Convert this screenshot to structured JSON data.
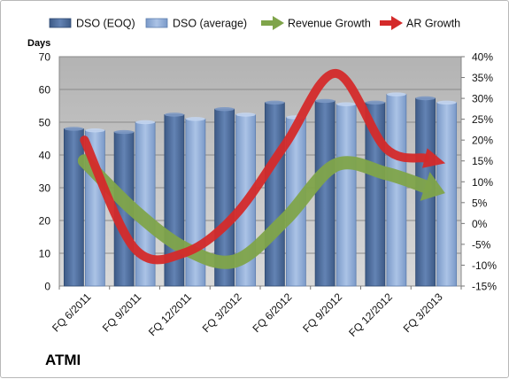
{
  "company": "ATMI",
  "chart_data": {
    "type": "bar",
    "y_title": "Days",
    "categories": [
      "FQ 6/2011",
      "FQ 9/2011",
      "FQ 12/2011",
      "FQ 3/2012",
      "FQ 6/2012",
      "FQ 9/2012",
      "FQ 12/2012",
      "FQ 3/2013"
    ],
    "series": [
      {
        "name": "DSO (EOQ)",
        "axis": "left",
        "kind": "bar",
        "color": "#4f6d9a",
        "values": [
          48,
          47,
          52.3,
          54,
          56,
          56.5,
          56,
          57.3
        ]
      },
      {
        "name": "DSO (average)",
        "axis": "left",
        "kind": "bar",
        "color": "#8eaad2",
        "values": [
          47.5,
          50,
          51,
          52.3,
          51.5,
          55.5,
          58.5,
          56
        ]
      },
      {
        "name": "Revenue Growth",
        "axis": "right",
        "kind": "arrow-curve",
        "color": "#7fa44a",
        "values": [
          15,
          3,
          -6,
          -9,
          1,
          14,
          12,
          8
        ]
      },
      {
        "name": "AR Growth",
        "axis": "right",
        "kind": "arrow-curve",
        "color": "#d42a2a",
        "values": [
          20,
          -6,
          -7,
          2,
          19,
          36,
          18,
          15
        ]
      }
    ],
    "y_left": {
      "min": 0,
      "max": 70,
      "step": 10,
      "ticks": [
        "0",
        "10",
        "20",
        "30",
        "40",
        "50",
        "60",
        "70"
      ]
    },
    "y_right": {
      "min": -15,
      "max": 40,
      "step": 5,
      "ticks": [
        "-15%",
        "-10%",
        "-5%",
        "0%",
        "5%",
        "10%",
        "15%",
        "20%",
        "25%",
        "30%",
        "35%",
        "40%"
      ]
    },
    "legend_position": "top",
    "grid": true,
    "plot_background": "#c0c0c0"
  }
}
